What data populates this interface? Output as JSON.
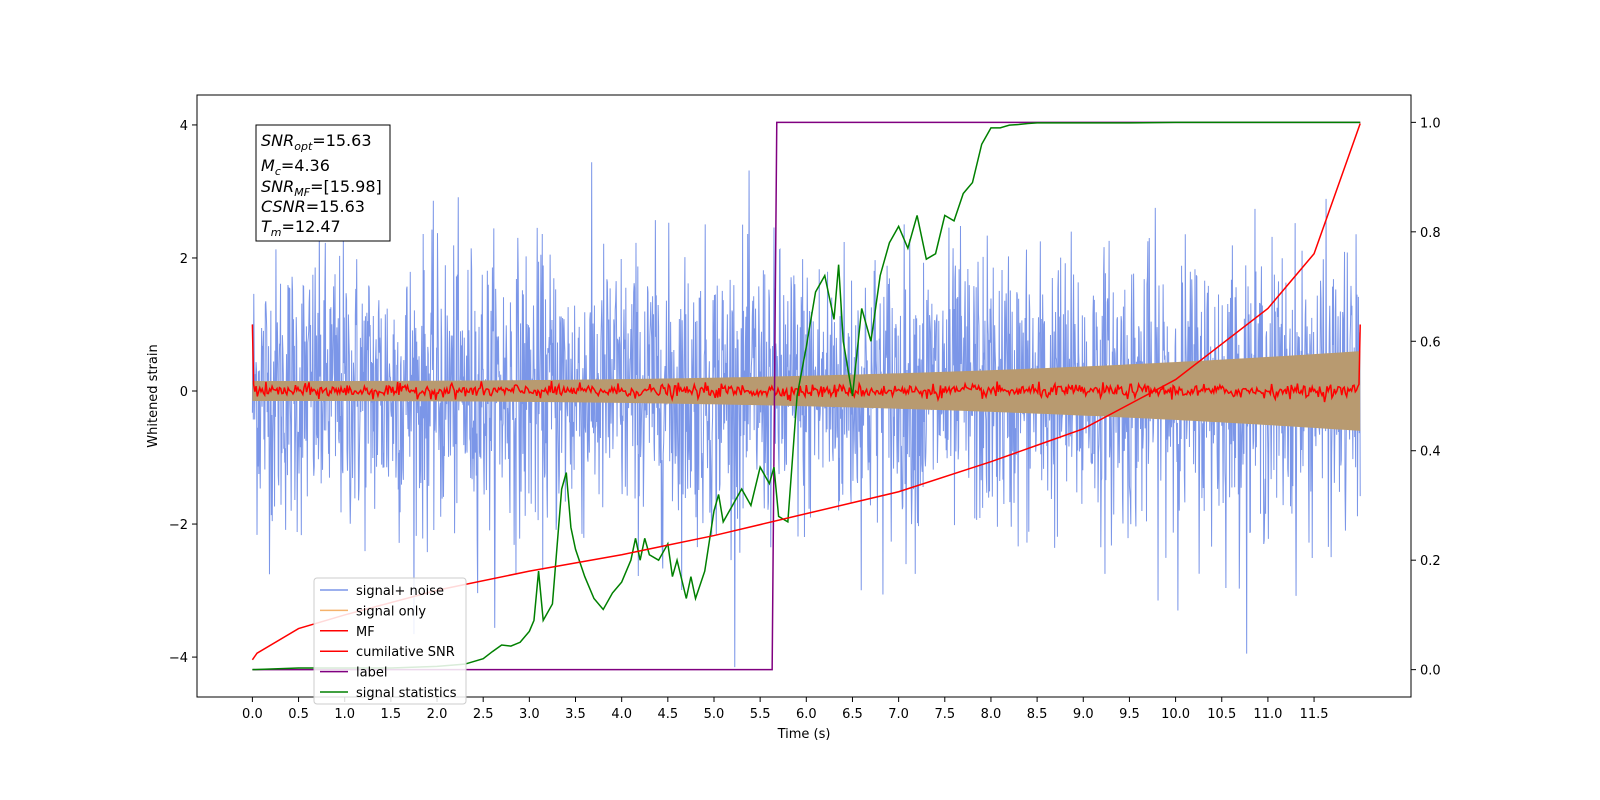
{
  "chart_data": {
    "type": "line",
    "xlabel": "Time (s)",
    "ylabel_left": "Whitened strain",
    "xlim": [
      -0.6,
      12.55
    ],
    "ylim_left": [
      -4.6,
      4.45
    ],
    "ylim_right": [
      -0.05,
      1.05
    ],
    "x_ticks": [
      "0.0",
      "0.5",
      "1.0",
      "1.5",
      "2.0",
      "2.5",
      "3.0",
      "3.5",
      "4.0",
      "4.5",
      "5.0",
      "5.5",
      "6.0",
      "6.5",
      "7.0",
      "7.5",
      "8.0",
      "8.5",
      "9.0",
      "9.5",
      "10.0",
      "10.5",
      "11.0",
      "11.5"
    ],
    "y_ticks_left": [
      "4",
      "2",
      "0",
      "−2",
      "−4"
    ],
    "y_ticks_right": [
      "1.0",
      "0.8",
      "0.6",
      "0.4",
      "0.2",
      "0.0"
    ],
    "info_box": {
      "snr_opt": {
        "base": "SNR",
        "sub": "opt",
        "value": "=15.63"
      },
      "mc": {
        "base": "M",
        "sub": "c",
        "value": "=4.36"
      },
      "snr_mf": {
        "base": "SNR",
        "sub": "MF",
        "value": "=[15.98]"
      },
      "csnr": {
        "base": "CSNR",
        "sub": "",
        "value": "=15.63"
      },
      "tm": {
        "base": "T",
        "sub": "m",
        "value": "=12.47"
      }
    },
    "legend": {
      "position": "lower-left",
      "entries": [
        "signal+ noise",
        "signal only",
        "MF",
        "cumilative SNR",
        "label",
        "signal statistics"
      ]
    },
    "series": [
      {
        "name": "signal+ noise",
        "axis": "left",
        "color": "#7b96e8",
        "description": "dense noise, roughly ±2.5 with spikes to ±4",
        "x_range": [
          0.0,
          12.0
        ]
      },
      {
        "name": "signal only",
        "axis": "left",
        "color": "#f5b26b",
        "envelope_start": 0.15,
        "envelope_end": 0.6,
        "x_range": [
          0.0,
          12.0
        ]
      },
      {
        "name": "MF",
        "axis": "left",
        "color": "#ff0000",
        "description": "near 0 with small noise, spikes to 1.0 at ends",
        "x_range": [
          0.0,
          12.0
        ]
      },
      {
        "name": "cumilative SNR",
        "axis": "right",
        "color": "#ff0000",
        "x": [
          0.0,
          0.05,
          0.5,
          1.0,
          2.0,
          3.0,
          4.0,
          5.0,
          6.0,
          7.0,
          8.0,
          8.5,
          9.0,
          10.0,
          11.0,
          11.5,
          12.0
        ],
        "y": [
          0.018,
          0.03,
          0.075,
          0.1,
          0.145,
          0.18,
          0.21,
          0.245,
          0.285,
          0.325,
          0.38,
          0.41,
          0.44,
          0.53,
          0.66,
          0.76,
          0.998
        ]
      },
      {
        "name": "label",
        "axis": "right",
        "color": "#800080",
        "x": [
          0.0,
          5.63,
          5.68,
          12.0
        ],
        "y": [
          0.0,
          0.0,
          1.0,
          1.0
        ]
      },
      {
        "name": "signal statistics",
        "axis": "right",
        "color": "#008000",
        "x": [
          0.0,
          0.5,
          1.0,
          1.5,
          2.0,
          2.3,
          2.5,
          2.6,
          2.7,
          2.8,
          2.9,
          3.0,
          3.05,
          3.1,
          3.15,
          3.25,
          3.35,
          3.4,
          3.45,
          3.5,
          3.6,
          3.7,
          3.8,
          3.9,
          4.0,
          4.1,
          4.15,
          4.2,
          4.25,
          4.3,
          4.4,
          4.5,
          4.55,
          4.6,
          4.7,
          4.75,
          4.8,
          4.9,
          5.0,
          5.05,
          5.1,
          5.2,
          5.3,
          5.4,
          5.5,
          5.6,
          5.65,
          5.7,
          5.8,
          5.9,
          6.0,
          6.1,
          6.2,
          6.3,
          6.35,
          6.4,
          6.5,
          6.6,
          6.7,
          6.8,
          6.9,
          7.0,
          7.1,
          7.2,
          7.3,
          7.4,
          7.5,
          7.6,
          7.7,
          7.75,
          7.8,
          7.9,
          8.0,
          8.1,
          8.2,
          8.3,
          8.4,
          8.5,
          9.0,
          9.5,
          10.0,
          10.5,
          11.0,
          11.5,
          12.0
        ],
        "y": [
          0.0,
          0.003,
          0.003,
          0.003,
          0.006,
          0.01,
          0.02,
          0.033,
          0.045,
          0.043,
          0.05,
          0.07,
          0.09,
          0.18,
          0.09,
          0.12,
          0.33,
          0.36,
          0.26,
          0.22,
          0.17,
          0.13,
          0.11,
          0.14,
          0.16,
          0.2,
          0.24,
          0.2,
          0.24,
          0.21,
          0.2,
          0.23,
          0.17,
          0.2,
          0.13,
          0.17,
          0.13,
          0.18,
          0.29,
          0.32,
          0.27,
          0.3,
          0.33,
          0.3,
          0.37,
          0.34,
          0.37,
          0.28,
          0.27,
          0.5,
          0.59,
          0.69,
          0.72,
          0.64,
          0.74,
          0.6,
          0.5,
          0.66,
          0.6,
          0.72,
          0.78,
          0.81,
          0.77,
          0.83,
          0.75,
          0.76,
          0.83,
          0.82,
          0.87,
          0.88,
          0.89,
          0.96,
          0.99,
          0.99,
          0.995,
          0.996,
          0.998,
          0.999,
          0.999,
          0.999,
          1.0,
          1.0,
          1.0,
          1.0,
          1.0
        ]
      }
    ]
  }
}
